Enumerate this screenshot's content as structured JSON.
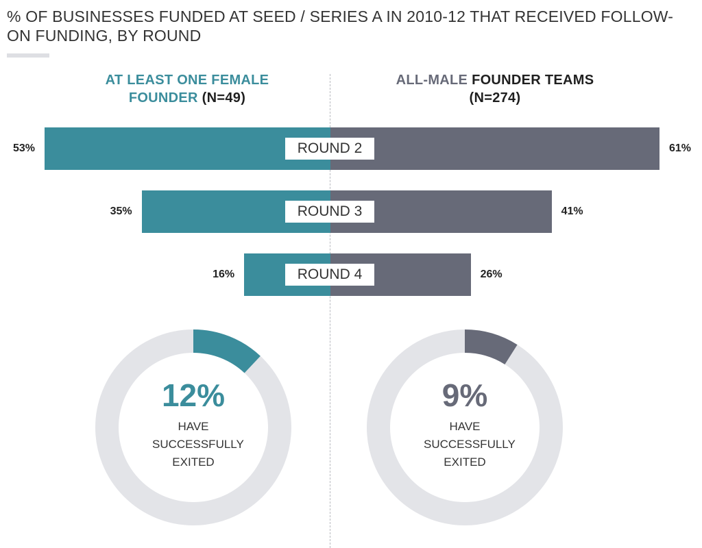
{
  "title": "% OF BUSINESSES FUNDED AT SEED / SERIES A IN 2010-12 THAT RECEIVED FOLLOW-ON FUNDING, BY ROUND",
  "groups": {
    "female": {
      "heading_colored": "AT LEAST ONE FEMALE FOUNDER",
      "heading_rest": "(N=49)",
      "color": "#3b8d9c"
    },
    "male": {
      "heading_colored": "ALL-MALE",
      "heading_rest": "FOUNDER TEAMS (N=274)",
      "color": "#676a78"
    }
  },
  "chart_data": [
    {
      "type": "bar",
      "orientation": "diverging-horizontal",
      "categories": [
        "ROUND 2",
        "ROUND 3",
        "ROUND 4"
      ],
      "series": [
        {
          "name": "AT LEAST ONE FEMALE FOUNDER (N=49)",
          "values": [
            53,
            35,
            16
          ],
          "labels": [
            "53%",
            "35%",
            "16%"
          ],
          "color": "#3b8d9c"
        },
        {
          "name": "ALL-MALE FOUNDER TEAMS (N=274)",
          "values": [
            61,
            41,
            26
          ],
          "labels": [
            "61%",
            "41%",
            "26%"
          ],
          "color": "#676a78"
        }
      ],
      "unit": "%"
    },
    {
      "type": "pie",
      "variant": "donut",
      "values": [
        12,
        88
      ],
      "center_text": "12%",
      "caption": "HAVE SUCCESSFULLY EXITED",
      "color": "#3b8d9c",
      "track_color": "#e3e4e8"
    },
    {
      "type": "pie",
      "variant": "donut",
      "values": [
        9,
        91
      ],
      "center_text": "9%",
      "caption": "HAVE SUCCESSFULLY EXITED",
      "color": "#676a78",
      "track_color": "#e3e4e8"
    }
  ]
}
